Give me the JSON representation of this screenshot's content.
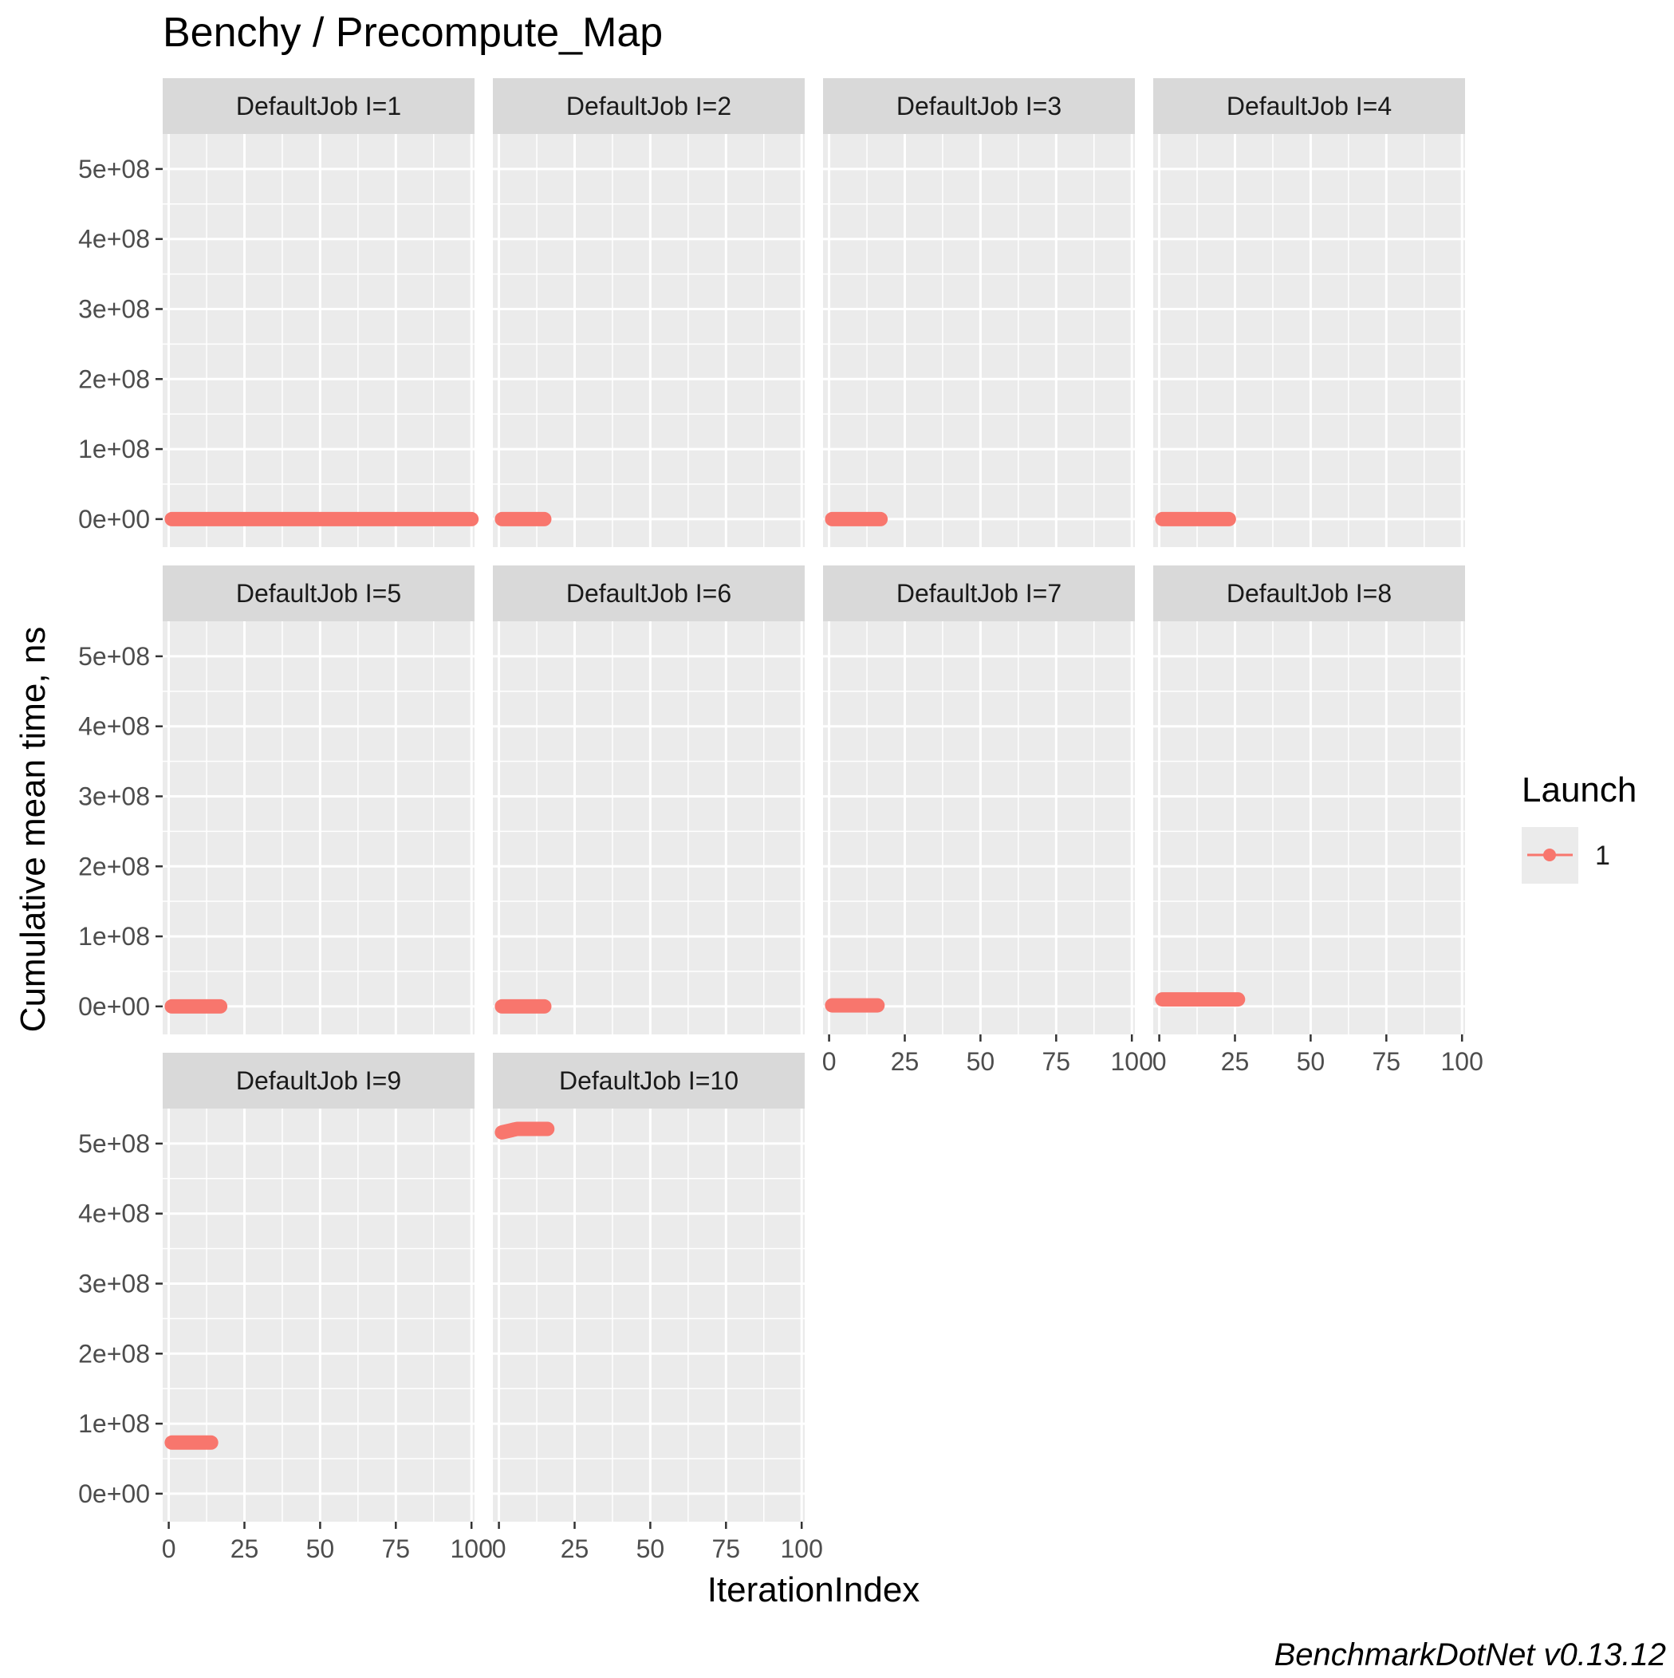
{
  "chart_data": {
    "type": "line",
    "title": "Benchy / Precompute_Map",
    "xlabel": "IterationIndex",
    "ylabel": "Cumulative mean time, ns",
    "caption": "BenchmarkDotNet v0.13.12",
    "facet_layout": "4 columns x 3 rows, wrapped",
    "xlim": [
      -2,
      101
    ],
    "ylim": [
      -40000000,
      550000000
    ],
    "x_ticks": [
      0,
      25,
      50,
      75,
      100
    ],
    "x_tick_labels": [
      "0",
      "25",
      "50",
      "75",
      "100"
    ],
    "y_ticks": [
      0,
      100000000,
      200000000,
      300000000,
      400000000,
      500000000
    ],
    "y_tick_labels": [
      "0e+00",
      "1e+08",
      "2e+08",
      "3e+08",
      "4e+08",
      "5e+08"
    ],
    "grid": true,
    "legend": {
      "title": "Launch",
      "position": "right",
      "items": [
        {
          "label": "1",
          "color": "#F8766D"
        }
      ]
    },
    "series_color": "#F8766D",
    "panels": [
      {
        "strip": "DefaultJob I=1",
        "launch": "1",
        "x_start": 1,
        "x_end": 100,
        "y_start": 0,
        "y_end": 0
      },
      {
        "strip": "DefaultJob I=2",
        "launch": "1",
        "x_start": 1,
        "x_end": 15,
        "y_start": 0,
        "y_end": 0
      },
      {
        "strip": "DefaultJob I=3",
        "launch": "1",
        "x_start": 1,
        "x_end": 17,
        "y_start": 0,
        "y_end": 0
      },
      {
        "strip": "DefaultJob I=4",
        "launch": "1",
        "x_start": 1,
        "x_end": 23,
        "y_start": 0,
        "y_end": 0
      },
      {
        "strip": "DefaultJob I=5",
        "launch": "1",
        "x_start": 1,
        "x_end": 17,
        "y_start": 0,
        "y_end": 0
      },
      {
        "strip": "DefaultJob I=6",
        "launch": "1",
        "x_start": 1,
        "x_end": 15,
        "y_start": 0,
        "y_end": 0
      },
      {
        "strip": "DefaultJob I=7",
        "launch": "1",
        "x_start": 1,
        "x_end": 16,
        "y_start": 1500000,
        "y_end": 1500000
      },
      {
        "strip": "DefaultJob I=8",
        "launch": "1",
        "x_start": 1,
        "x_end": 26,
        "y_start": 10000000,
        "y_end": 10000000
      },
      {
        "strip": "DefaultJob I=9",
        "launch": "1",
        "x_start": 1,
        "x_end": 14,
        "y_start": 73000000,
        "y_end": 73000000
      },
      {
        "strip": "DefaultJob I=10",
        "launch": "1",
        "x_start": 1,
        "x_end": 16,
        "y_start": 516000000,
        "y_end": 521000000
      }
    ]
  }
}
